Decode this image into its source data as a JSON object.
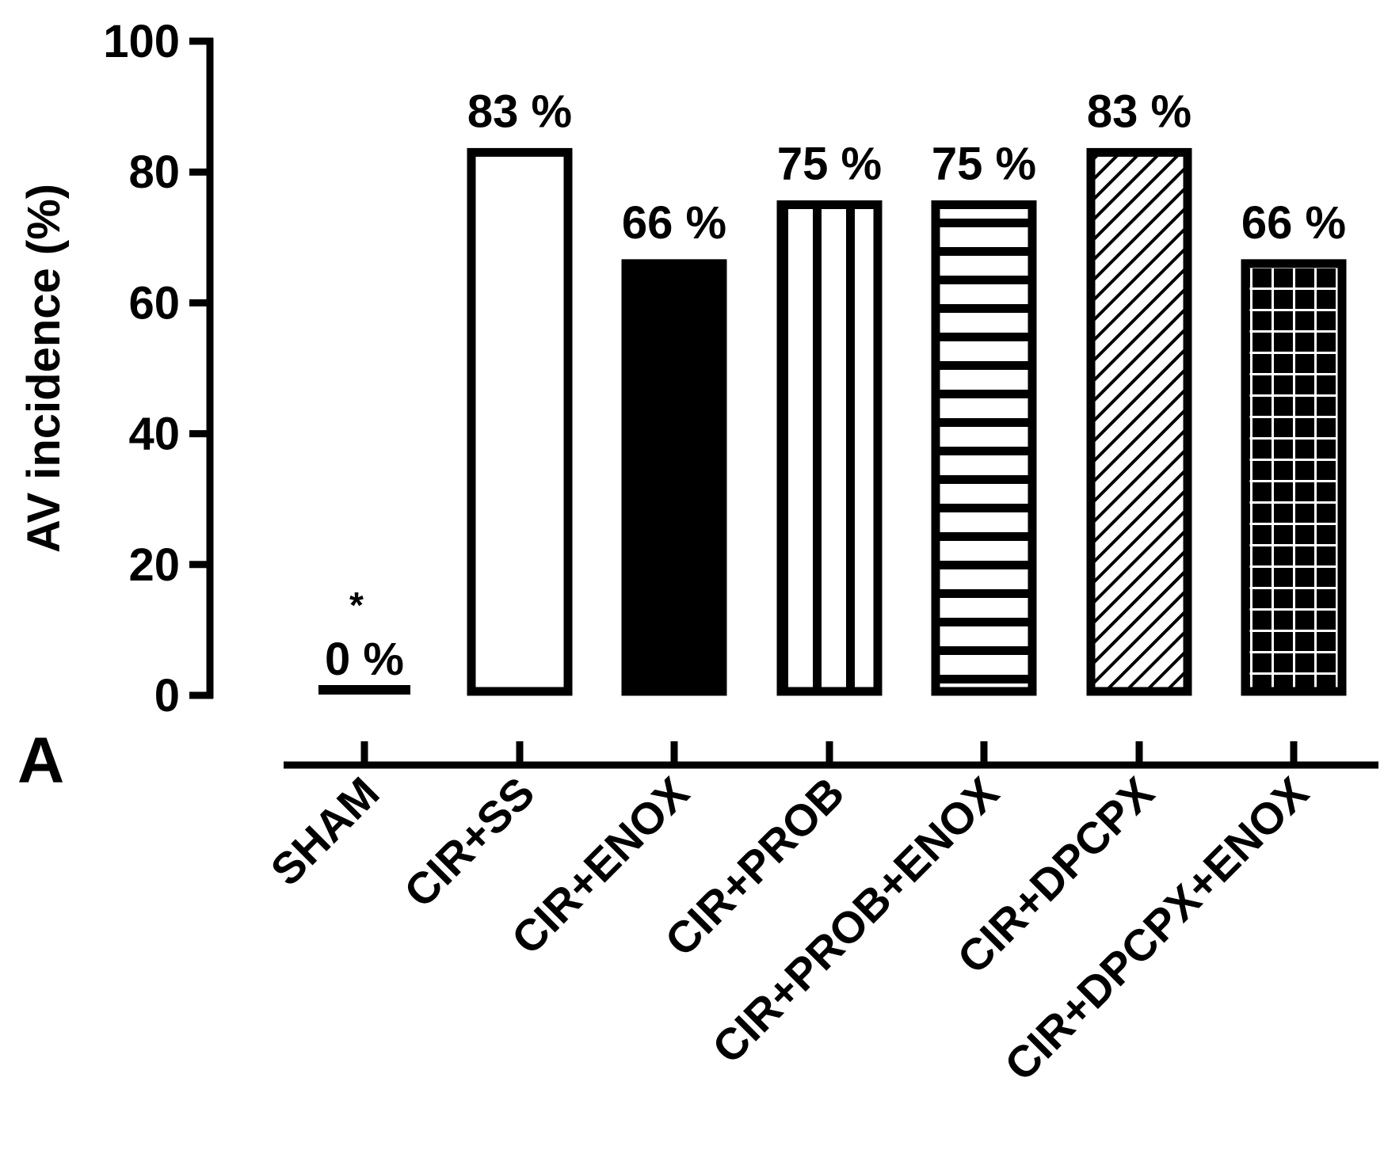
{
  "chart_data": {
    "type": "bar",
    "panel_label": "A",
    "ylabel": "AV incidence (%)",
    "xlabel": "",
    "ylim": [
      0,
      100
    ],
    "yticks": [
      0,
      20,
      40,
      60,
      80,
      100
    ],
    "categories": [
      "SHAM",
      "CIR+SS",
      "CIR+ENOX",
      "CIR+PROB",
      "CIR+PROB+ENOX",
      "CIR+DPCPX",
      "CIR+DPCPX+ENOX"
    ],
    "values": [
      0,
      83,
      66,
      75,
      75,
      83,
      66
    ],
    "value_labels": [
      "0 %",
      "83 %",
      "66 %",
      "75 %",
      "75 %",
      "83 %",
      "66 %"
    ],
    "fills": [
      "none",
      "open",
      "solid",
      "vertical-stripes",
      "horizontal-stripes",
      "diagonal-hatch",
      "grid"
    ],
    "annotations": [
      {
        "category": "SHAM",
        "text": "*"
      }
    ]
  }
}
